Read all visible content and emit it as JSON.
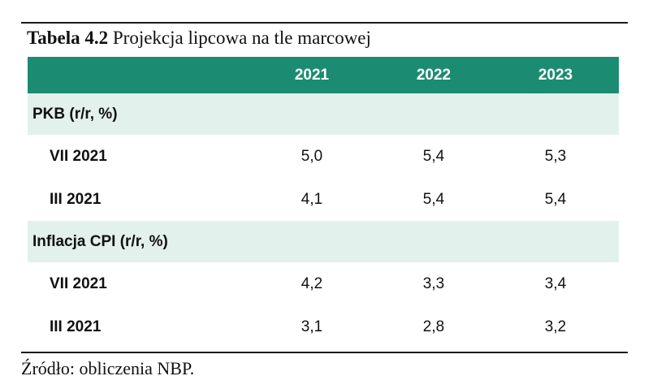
{
  "caption": {
    "label": "Tabela 4.2",
    "title": "Projekcja lipcowa na tle marcowej"
  },
  "table": {
    "columns": [
      "2021",
      "2022",
      "2023"
    ],
    "sections": [
      {
        "label": "PKB (r/r, %)",
        "rows": [
          {
            "label": "VII 2021",
            "values": [
              "5,0",
              "5,4",
              "5,3"
            ]
          },
          {
            "label": "III 2021",
            "values": [
              "4,1",
              "5,4",
              "5,4"
            ]
          }
        ]
      },
      {
        "label": "Inflacja CPI (r/r, %)",
        "rows": [
          {
            "label": "VII 2021",
            "values": [
              "4,2",
              "3,3",
              "3,4"
            ]
          },
          {
            "label": "III 2021",
            "values": [
              "3,1",
              "2,8",
              "3,2"
            ]
          }
        ]
      }
    ]
  },
  "source": "Źródło: obliczenia NBP.",
  "colors": {
    "header_bg": "#1b8c72",
    "section_bg": "#e2f1ec"
  }
}
